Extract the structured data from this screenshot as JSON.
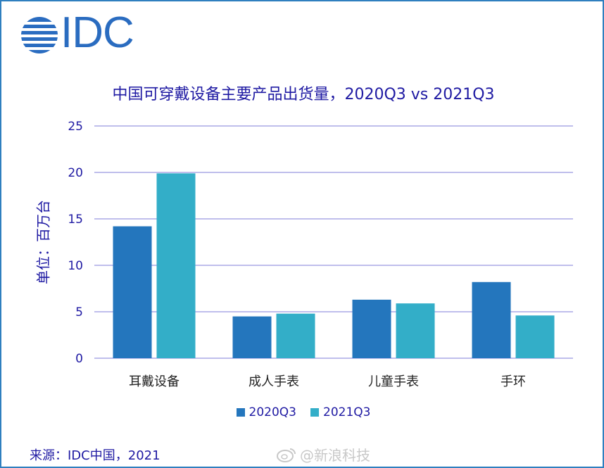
{
  "logo": {
    "text": "IDC"
  },
  "colors": {
    "frame": "#2f7fbf",
    "title": "#1f1aa3",
    "series1": "#2476bd",
    "series2": "#33aec8",
    "grid": "#aaa8e6"
  },
  "chart_data": {
    "type": "bar",
    "title": "中国可穿戴设备主要产品出货量，2020Q3 vs 2021Q3",
    "xlabel": "",
    "ylabel": "单位：百万台",
    "categories": [
      "耳戴设备",
      "成人手表",
      "儿童手表",
      "手环"
    ],
    "series": [
      {
        "name": "2020Q3",
        "values": [
          14.2,
          4.5,
          6.3,
          8.2
        ]
      },
      {
        "name": "2021Q3",
        "values": [
          19.9,
          4.8,
          5.9,
          4.6
        ]
      }
    ],
    "ylim": [
      0,
      25
    ],
    "yticks": [
      0,
      5,
      10,
      15,
      20,
      25
    ],
    "grid": true,
    "legend_position": "bottom"
  },
  "source": "来源：IDC中国，2021",
  "watermark": "@新浪科技"
}
